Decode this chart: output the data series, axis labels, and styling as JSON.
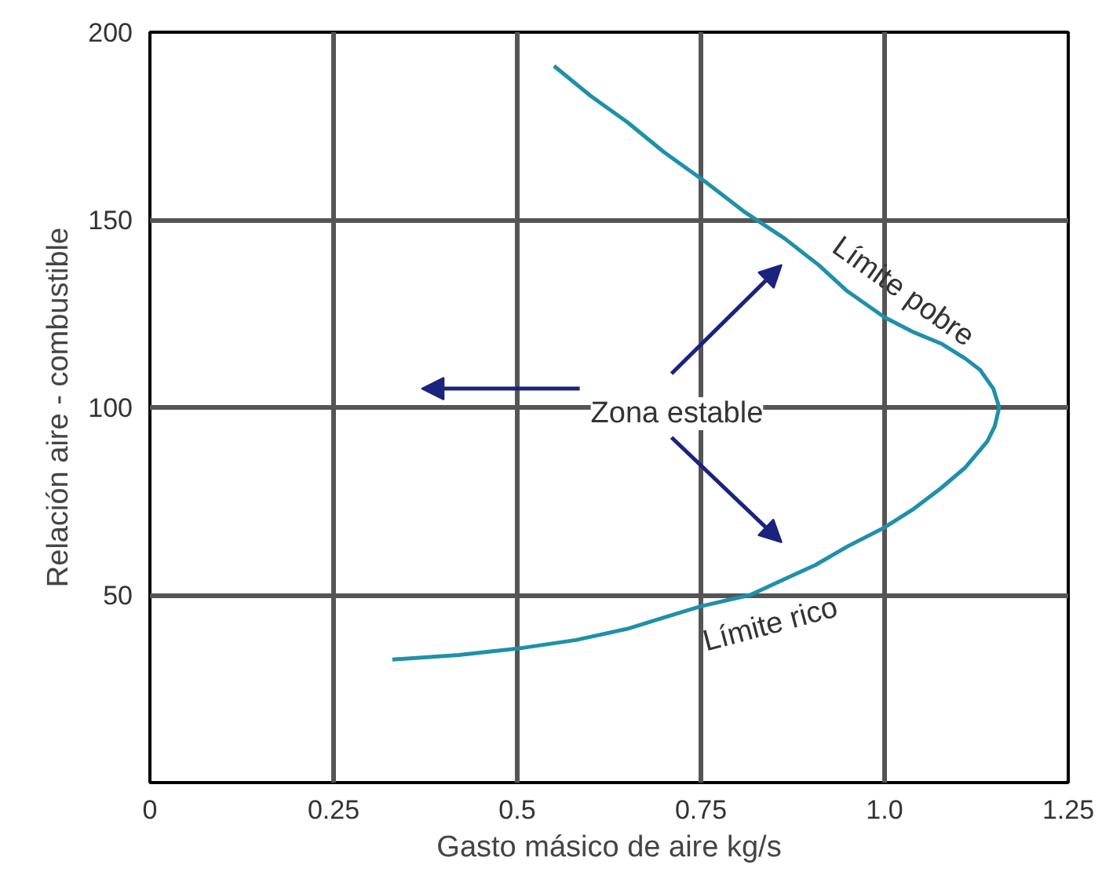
{
  "chart_data": {
    "type": "line",
    "xlabel": "Gasto másico de aire kg/s",
    "ylabel": "Relación aire - combustible",
    "series": [
      {
        "color": "#1f90aa",
        "x": [
          0.55,
          0.6,
          0.65,
          0.7,
          0.757,
          0.81,
          0.864,
          0.91,
          0.949,
          1.0,
          1.04,
          1.077,
          1.11,
          1.13,
          1.148,
          1.156,
          1.15,
          1.14,
          1.11,
          1.077,
          1.04,
          1.0,
          0.95,
          0.906,
          0.85,
          0.817,
          0.75,
          0.7,
          0.65,
          0.58,
          0.5,
          0.42,
          0.33
        ],
        "values": [
          191,
          183,
          176,
          168,
          160,
          152,
          145,
          138,
          131,
          124,
          120,
          117,
          113,
          110,
          105,
          100,
          95,
          91,
          84,
          78.5,
          73,
          68,
          63,
          58,
          53,
          50,
          47,
          44,
          41,
          38,
          35.7,
          34,
          32.8
        ]
      }
    ],
    "xlim": [
      0,
      1.25
    ],
    "ylim": [
      0,
      200
    ],
    "xticks": [
      0,
      0.25,
      0.5,
      {
        "value": 0.75,
        "label": "0.75"
      },
      {
        "value": 1.0,
        "label": "1.0"
      },
      1.25
    ],
    "yticks": [
      50,
      100,
      150,
      200
    ],
    "grid": true,
    "marker": "none",
    "line_style": "solid",
    "annotations": [
      "Zona estable",
      "Límite pobre",
      "Límite rico"
    ]
  }
}
